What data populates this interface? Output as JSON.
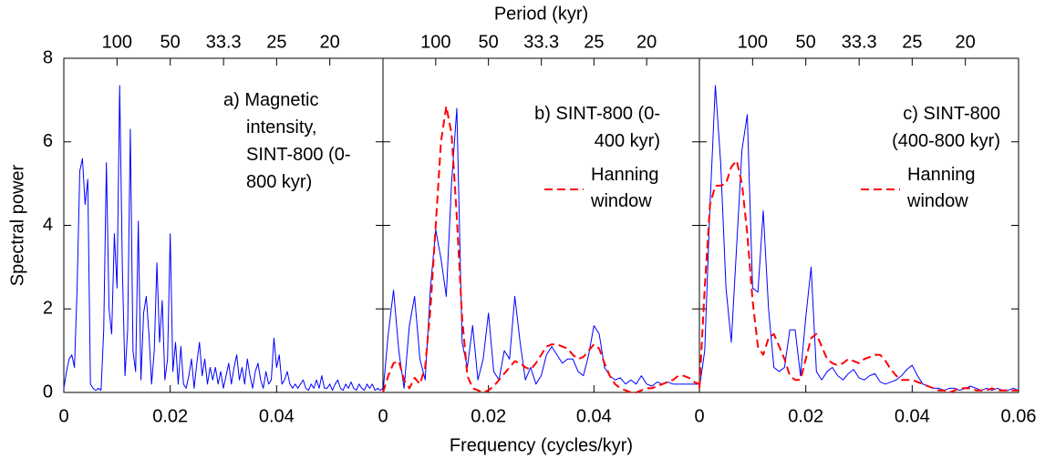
{
  "chart_data": [
    {
      "type": "line",
      "ylabel": "Spectral power",
      "annotation": "a) Magnetic intensity, SINT-800 (0-800 kyr)",
      "xlim": [
        0,
        0.06
      ],
      "xticks": [
        0,
        0.02,
        0.04
      ],
      "ylim": [
        0,
        8
      ],
      "yticks": [
        0,
        2,
        4,
        6,
        8
      ],
      "x2ticks": [
        100,
        50,
        33.3,
        25,
        20
      ],
      "x2_scale": "reciprocal",
      "x": [
        0,
        0.0005,
        0.001,
        0.0015,
        0.002,
        0.0025,
        0.003,
        0.0035,
        0.004,
        0.0045,
        0.005,
        0.0055,
        0.006,
        0.0065,
        0.007,
        0.0075,
        0.008,
        0.0085,
        0.009,
        0.0095,
        0.01,
        0.0105,
        0.011,
        0.0115,
        0.012,
        0.0125,
        0.013,
        0.0135,
        0.014,
        0.0145,
        0.015,
        0.0155,
        0.016,
        0.0165,
        0.017,
        0.0175,
        0.018,
        0.0185,
        0.019,
        0.0195,
        0.02,
        0.0205,
        0.021,
        0.0215,
        0.022,
        0.0225,
        0.023,
        0.0235,
        0.024,
        0.0245,
        0.025,
        0.0255,
        0.026,
        0.0265,
        0.027,
        0.0275,
        0.028,
        0.0285,
        0.029,
        0.0295,
        0.03,
        0.0305,
        0.031,
        0.0315,
        0.032,
        0.0325,
        0.033,
        0.0335,
        0.034,
        0.0345,
        0.035,
        0.0355,
        0.036,
        0.0365,
        0.037,
        0.0375,
        0.038,
        0.0385,
        0.039,
        0.0395,
        0.04,
        0.0405,
        0.041,
        0.0415,
        0.042,
        0.0425,
        0.043,
        0.0435,
        0.044,
        0.0445,
        0.045,
        0.0455,
        0.046,
        0.0465,
        0.047,
        0.0475,
        0.048,
        0.0485,
        0.049,
        0.0495,
        0.05,
        0.0505,
        0.051,
        0.0515,
        0.052,
        0.0525,
        0.053,
        0.0535,
        0.054,
        0.0545,
        0.055,
        0.0555,
        0.056,
        0.0565,
        0.057,
        0.0575,
        0.058,
        0.0585,
        0.059,
        0.0595,
        0.06
      ],
      "series": [
        {
          "color": "#0000ff",
          "dashed": false,
          "values": [
            0.1,
            0.5,
            0.8,
            0.9,
            0.6,
            2.5,
            5.3,
            5.6,
            4.5,
            5.1,
            0.2,
            0.1,
            0.05,
            0.1,
            0.05,
            1.5,
            5.5,
            2.0,
            1.4,
            3.8,
            2.5,
            7.35,
            3.0,
            0.4,
            1.5,
            6.3,
            1.0,
            0.5,
            4.1,
            0.3,
            1.9,
            2.3,
            1.4,
            0.2,
            1.0,
            3.1,
            1.2,
            2.2,
            0.3,
            0.8,
            3.8,
            0.5,
            1.2,
            0.2,
            1.1,
            0.2,
            0.1,
            0.4,
            0.8,
            0.1,
            0.7,
            1.2,
            0.4,
            0.8,
            0.2,
            0.6,
            0.3,
            0.6,
            0.2,
            0.5,
            0.1,
            0.4,
            0.7,
            0.2,
            0.6,
            0.9,
            0.3,
            0.6,
            0.2,
            0.8,
            0.4,
            0.1,
            0.5,
            0.7,
            0.3,
            0.1,
            0.5,
            0.2,
            0.3,
            1.3,
            0.6,
            0.9,
            0.2,
            0.3,
            0.5,
            0.2,
            0.1,
            0.2,
            0.1,
            0.2,
            0.3,
            0.1,
            0.05,
            0.2,
            0.1,
            0.3,
            0.1,
            0.4,
            0.1,
            0.1,
            0.2,
            0.05,
            0.2,
            0.3,
            0.1,
            0.05,
            0.2,
            0.1,
            0.25,
            0.1,
            0.05,
            0.2,
            0.1,
            0.05,
            0.2,
            0.1,
            0.2,
            0.05,
            0.1,
            0.05,
            0.1
          ]
        }
      ]
    },
    {
      "type": "line",
      "xlabel": "Frequency (cycles/kyr)",
      "x2label": "Period (kyr)",
      "annotation": "b) SINT-800 (0-400 kyr)",
      "xlim": [
        0,
        0.06
      ],
      "xticks": [
        0,
        0.02,
        0.04
      ],
      "ylim": [
        0,
        8
      ],
      "x2ticks": [
        100,
        50,
        33.3,
        25,
        20
      ],
      "x2_scale": "reciprocal",
      "x": [
        0,
        0.001,
        0.002,
        0.003,
        0.004,
        0.005,
        0.006,
        0.007,
        0.008,
        0.009,
        0.01,
        0.011,
        0.012,
        0.013,
        0.014,
        0.015,
        0.016,
        0.017,
        0.018,
        0.019,
        0.02,
        0.021,
        0.022,
        0.023,
        0.024,
        0.025,
        0.026,
        0.027,
        0.028,
        0.029,
        0.03,
        0.031,
        0.032,
        0.033,
        0.034,
        0.035,
        0.036,
        0.037,
        0.038,
        0.039,
        0.04,
        0.041,
        0.042,
        0.043,
        0.044,
        0.045,
        0.046,
        0.047,
        0.048,
        0.049,
        0.05,
        0.051,
        0.052,
        0.053,
        0.054,
        0.055,
        0.056,
        0.057,
        0.058,
        0.059,
        0.06
      ],
      "series": [
        {
          "color": "#0000ff",
          "dashed": false,
          "values": [
            0.0,
            1.4,
            2.45,
            1.0,
            0.1,
            1.6,
            2.3,
            0.8,
            0.3,
            2.5,
            3.9,
            3.2,
            2.3,
            5.0,
            6.8,
            1.2,
            0.6,
            1.6,
            0.3,
            0.8,
            1.9,
            0.5,
            0.3,
            1.0,
            0.8,
            2.3,
            1.2,
            0.3,
            0.6,
            0.2,
            0.4,
            0.9,
            1.1,
            0.9,
            0.7,
            0.8,
            0.8,
            0.5,
            0.4,
            0.9,
            1.6,
            1.4,
            0.6,
            0.4,
            0.3,
            0.35,
            0.2,
            0.3,
            0.2,
            0.4,
            0.2,
            0.15,
            0.25,
            0.2,
            0.25,
            0.2,
            0.2,
            0.2,
            0.2,
            0.2,
            0.2
          ]
        },
        {
          "name": "Hanning window",
          "color": "#ff0000",
          "dashed": true,
          "values": [
            0.0,
            0.4,
            0.7,
            0.75,
            0.3,
            0.1,
            0.35,
            0.2,
            0.6,
            2.0,
            4.0,
            6.0,
            6.85,
            6.2,
            4.2,
            1.8,
            0.4,
            0.1,
            0.05,
            0.0,
            0.05,
            0.15,
            0.3,
            0.45,
            0.6,
            0.75,
            0.7,
            0.6,
            0.55,
            0.7,
            0.9,
            1.1,
            1.15,
            1.15,
            1.1,
            1.05,
            0.9,
            0.8,
            0.85,
            1.0,
            1.15,
            1.05,
            0.7,
            0.4,
            0.2,
            0.1,
            0.05,
            0.0,
            0.0,
            0.05,
            0.1,
            0.1,
            0.15,
            0.2,
            0.25,
            0.3,
            0.4,
            0.4,
            0.35,
            0.25,
            0.2
          ]
        }
      ]
    },
    {
      "type": "line",
      "annotation": "c) SINT-800 (400-800 kyr)",
      "xlim": [
        0,
        0.06
      ],
      "xticks": [
        0,
        0.02,
        0.04,
        0.06
      ],
      "ylim": [
        0,
        8
      ],
      "x2ticks": [
        100,
        50,
        33.3,
        25,
        20
      ],
      "x2_scale": "reciprocal",
      "x": [
        0,
        0.001,
        0.002,
        0.003,
        0.004,
        0.005,
        0.006,
        0.007,
        0.008,
        0.009,
        0.01,
        0.011,
        0.012,
        0.013,
        0.014,
        0.015,
        0.016,
        0.017,
        0.018,
        0.019,
        0.02,
        0.021,
        0.022,
        0.023,
        0.024,
        0.025,
        0.026,
        0.027,
        0.028,
        0.029,
        0.03,
        0.031,
        0.032,
        0.033,
        0.034,
        0.035,
        0.036,
        0.037,
        0.038,
        0.039,
        0.04,
        0.041,
        0.042,
        0.043,
        0.044,
        0.045,
        0.046,
        0.047,
        0.048,
        0.049,
        0.05,
        0.051,
        0.052,
        0.053,
        0.054,
        0.055,
        0.056,
        0.057,
        0.058,
        0.059,
        0.06
      ],
      "series": [
        {
          "color": "#0000ff",
          "dashed": false,
          "values": [
            0.1,
            1.0,
            4.5,
            7.35,
            5.5,
            2.5,
            1.2,
            3.5,
            5.8,
            6.65,
            2.5,
            2.4,
            4.35,
            2.0,
            0.6,
            0.5,
            0.6,
            1.5,
            1.5,
            0.4,
            1.8,
            3.0,
            0.5,
            0.3,
            0.5,
            0.6,
            0.4,
            0.3,
            0.45,
            0.55,
            0.35,
            0.3,
            0.4,
            0.45,
            0.25,
            0.2,
            0.25,
            0.3,
            0.4,
            0.55,
            0.65,
            0.4,
            0.2,
            0.15,
            0.1,
            0.1,
            0.05,
            0.1,
            0.1,
            0.05,
            0.1,
            0.15,
            0.1,
            0.05,
            0.1,
            0.05,
            0.1,
            0.05,
            0.05,
            0.1,
            0.05
          ]
        },
        {
          "name": "Hanning window",
          "color": "#ff0000",
          "dashed": true,
          "values": [
            0.1,
            2.5,
            4.5,
            4.95,
            4.95,
            5.0,
            5.4,
            5.55,
            5.0,
            3.8,
            2.2,
            1.1,
            0.9,
            1.3,
            1.4,
            1.1,
            0.8,
            0.4,
            0.3,
            0.3,
            0.8,
            1.3,
            1.4,
            1.1,
            0.8,
            0.7,
            0.65,
            0.7,
            0.8,
            0.75,
            0.7,
            0.8,
            0.85,
            0.9,
            0.9,
            0.75,
            0.55,
            0.4,
            0.3,
            0.3,
            0.3,
            0.25,
            0.2,
            0.15,
            0.1,
            0.05,
            0.05,
            0.0,
            0.05,
            0.1,
            0.1,
            0.1,
            0.05,
            0.05,
            0.05,
            0.1,
            0.05,
            0.05,
            0.05,
            0.05,
            0.05
          ]
        }
      ]
    }
  ]
}
